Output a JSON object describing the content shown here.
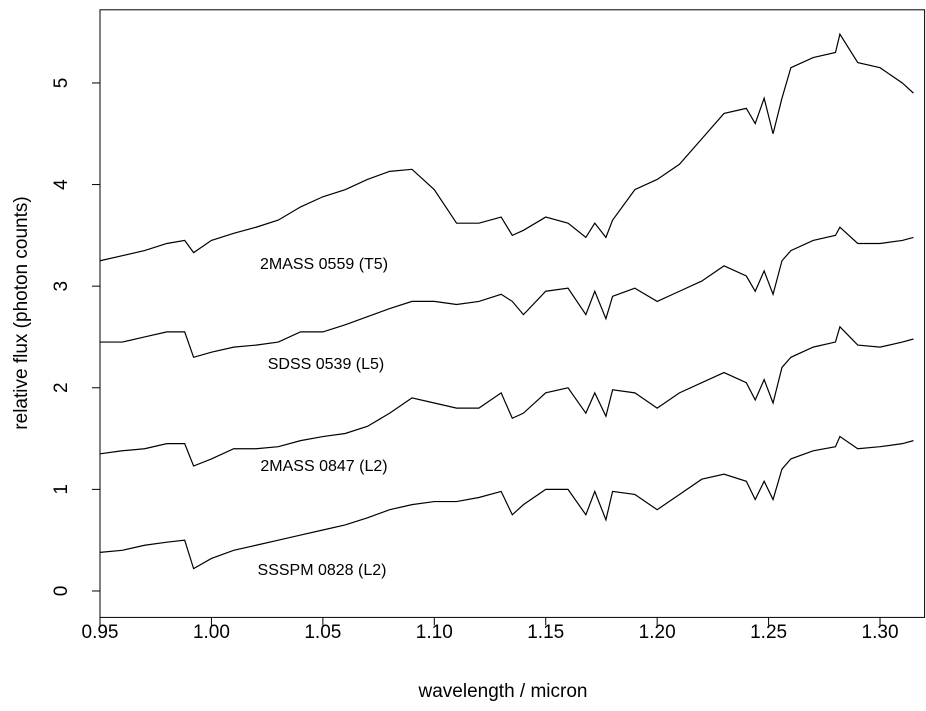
{
  "chart_data": {
    "type": "line",
    "xlabel": "wavelength / micron",
    "ylabel": "relative flux (photon counts)",
    "xlim": [
      0.95,
      1.32
    ],
    "ylim": [
      -0.26,
      5.72
    ],
    "xticks": [
      0.95,
      {
        "value": 1.0,
        "label": "1.00"
      },
      1.05,
      {
        "value": 1.1,
        "label": "1.10"
      },
      1.15,
      {
        "value": 1.2,
        "label": "1.20"
      },
      1.25,
      {
        "value": 1.3,
        "label": "1.30"
      }
    ],
    "yticks": [
      0,
      1,
      2,
      3,
      4,
      5
    ],
    "grid": false,
    "x": [
      0.95,
      0.96,
      0.97,
      0.98,
      0.988,
      0.992,
      1.0,
      1.01,
      1.02,
      1.03,
      1.04,
      1.05,
      1.06,
      1.07,
      1.08,
      1.09,
      1.1,
      1.11,
      1.12,
      1.13,
      1.135,
      1.14,
      1.15,
      1.16,
      1.168,
      1.172,
      1.177,
      1.18,
      1.19,
      1.2,
      1.21,
      1.22,
      1.23,
      1.24,
      1.244,
      1.248,
      1.252,
      1.256,
      1.26,
      1.27,
      1.28,
      1.282,
      1.29,
      1.3,
      1.31,
      1.315
    ],
    "series": [
      {
        "name": "2MASS 0559 (T5)",
        "color": "#000000",
        "values": [
          3.25,
          3.3,
          3.35,
          3.42,
          3.45,
          3.33,
          3.45,
          3.52,
          3.58,
          3.65,
          3.78,
          3.88,
          3.95,
          4.05,
          4.13,
          4.15,
          3.95,
          3.62,
          3.62,
          3.68,
          3.5,
          3.55,
          3.68,
          3.62,
          3.48,
          3.62,
          3.48,
          3.65,
          3.95,
          4.05,
          4.2,
          4.45,
          4.7,
          4.75,
          4.6,
          4.85,
          4.5,
          4.85,
          5.15,
          5.25,
          5.3,
          5.48,
          5.2,
          5.15,
          5.0,
          4.9
        ]
      },
      {
        "name": "SDSS 0539 (L5)",
        "color": "#000000",
        "values": [
          2.45,
          2.45,
          2.5,
          2.55,
          2.55,
          2.3,
          2.35,
          2.4,
          2.42,
          2.45,
          2.55,
          2.55,
          2.62,
          2.7,
          2.78,
          2.85,
          2.85,
          2.82,
          2.85,
          2.92,
          2.85,
          2.72,
          2.95,
          2.98,
          2.72,
          2.95,
          2.68,
          2.9,
          2.98,
          2.85,
          2.95,
          3.05,
          3.2,
          3.1,
          2.95,
          3.15,
          2.92,
          3.25,
          3.35,
          3.45,
          3.5,
          3.58,
          3.42,
          3.42,
          3.45,
          3.48
        ]
      },
      {
        "name": "2MASS 0847 (L2)",
        "color": "#000000",
        "values": [
          1.35,
          1.38,
          1.4,
          1.45,
          1.45,
          1.23,
          1.3,
          1.4,
          1.4,
          1.42,
          1.48,
          1.52,
          1.55,
          1.62,
          1.75,
          1.9,
          1.85,
          1.8,
          1.8,
          1.95,
          1.7,
          1.75,
          1.95,
          2.0,
          1.75,
          1.95,
          1.72,
          1.98,
          1.95,
          1.8,
          1.95,
          2.05,
          2.15,
          2.05,
          1.88,
          2.08,
          1.85,
          2.2,
          2.3,
          2.4,
          2.45,
          2.6,
          2.42,
          2.4,
          2.45,
          2.48
        ]
      },
      {
        "name": "SSSPM 0828 (L2)",
        "color": "#000000",
        "values": [
          0.38,
          0.4,
          0.45,
          0.48,
          0.5,
          0.22,
          0.32,
          0.4,
          0.45,
          0.5,
          0.55,
          0.6,
          0.65,
          0.72,
          0.8,
          0.85,
          0.88,
          0.88,
          0.92,
          0.98,
          0.75,
          0.85,
          1.0,
          1.0,
          0.75,
          0.98,
          0.7,
          0.98,
          0.95,
          0.8,
          0.95,
          1.1,
          1.15,
          1.08,
          0.9,
          1.08,
          0.9,
          1.2,
          1.3,
          1.38,
          1.42,
          1.52,
          1.4,
          1.42,
          1.45,
          1.48
        ]
      }
    ]
  }
}
